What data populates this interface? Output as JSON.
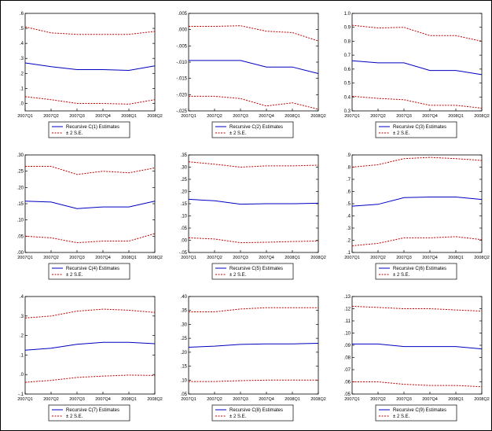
{
  "colors": {
    "estimate": "#0000c0",
    "band": "#c00000",
    "axis": "#000000"
  },
  "legend_se_label": "± 2 S.E.",
  "chart_data": [
    {
      "type": "line",
      "legend": "Recursive C(1) Estimates",
      "categories": [
        "2007Q1",
        "2007Q2",
        "2007Q3",
        "2007Q4",
        "2008Q1",
        "2008Q2"
      ],
      "ylim": [
        -0.05,
        0.6
      ],
      "yticks": [
        {
          "v": 0.6,
          "label": ".6"
        },
        {
          "v": 0.5,
          "label": ".5"
        },
        {
          "v": 0.4,
          "label": ".4"
        },
        {
          "v": 0.3,
          "label": ".3"
        },
        {
          "v": 0.2,
          "label": ".2"
        },
        {
          "v": 0.1,
          "label": ".1"
        },
        {
          "v": 0.0,
          "label": ".0"
        }
      ],
      "estimate": [
        0.27,
        0.245,
        0.225,
        0.225,
        0.22,
        0.25
      ],
      "upper": [
        0.51,
        0.47,
        0.46,
        0.46,
        0.46,
        0.48
      ],
      "lower": [
        0.045,
        0.025,
        0.0,
        0.0,
        -0.005,
        0.025
      ]
    },
    {
      "type": "line",
      "legend": "Recursive C(2) Estimates",
      "categories": [
        "2007Q1",
        "2007Q2",
        "2007Q3",
        "2007Q4",
        "2008Q1",
        "2008Q2"
      ],
      "ylim": [
        -0.025,
        0.005
      ],
      "yticks": [
        {
          "v": 0.005,
          "label": ".005"
        },
        {
          "v": 0.0,
          "label": ".000"
        },
        {
          "v": -0.005,
          "label": "-.005"
        },
        {
          "v": -0.01,
          "label": "-.010"
        },
        {
          "v": -0.015,
          "label": "-.015"
        },
        {
          "v": -0.02,
          "label": "-.020"
        },
        {
          "v": -0.025,
          "label": "-.025"
        }
      ],
      "estimate": [
        -0.0095,
        -0.0095,
        -0.0095,
        -0.0115,
        -0.0115,
        -0.0135
      ],
      "upper": [
        0.001,
        0.001,
        0.0012,
        -0.0005,
        -0.0009,
        -0.0035
      ],
      "lower": [
        -0.0205,
        -0.0205,
        -0.0212,
        -0.0235,
        -0.0225,
        -0.0245
      ]
    },
    {
      "type": "line",
      "legend": "Recursive C(3) Estimates",
      "categories": [
        "2007Q1",
        "2007Q2",
        "2007Q3",
        "2007Q4",
        "2008Q1",
        "2008Q2"
      ],
      "ylim": [
        0.3,
        1.0
      ],
      "yticks": [
        {
          "v": 1.0,
          "label": "1.0"
        },
        {
          "v": 0.9,
          "label": "0.9"
        },
        {
          "v": 0.8,
          "label": "0.8"
        },
        {
          "v": 0.7,
          "label": "0.7"
        },
        {
          "v": 0.6,
          "label": "0.6"
        },
        {
          "v": 0.5,
          "label": "0.5"
        },
        {
          "v": 0.4,
          "label": "0.4"
        },
        {
          "v": 0.3,
          "label": "0.3"
        }
      ],
      "estimate": [
        0.66,
        0.645,
        0.645,
        0.59,
        0.59,
        0.56
      ],
      "upper": [
        0.915,
        0.895,
        0.9,
        0.84,
        0.84,
        0.8
      ],
      "lower": [
        0.405,
        0.39,
        0.38,
        0.34,
        0.34,
        0.32
      ]
    },
    {
      "type": "line",
      "legend": "Recursive C(4) Estimates",
      "categories": [
        "2007Q1",
        "2007Q2",
        "2007Q3",
        "2007Q4",
        "2008Q1",
        "2008Q2"
      ],
      "ylim": [
        0.0,
        0.3
      ],
      "yticks": [
        {
          "v": 0.3,
          "label": ".30"
        },
        {
          "v": 0.25,
          "label": ".25"
        },
        {
          "v": 0.2,
          "label": ".20"
        },
        {
          "v": 0.15,
          "label": ".15"
        },
        {
          "v": 0.1,
          "label": ".10"
        },
        {
          "v": 0.05,
          "label": ".05"
        },
        {
          "v": 0.0,
          "label": ".00"
        }
      ],
      "estimate": [
        0.158,
        0.155,
        0.135,
        0.14,
        0.14,
        0.158
      ],
      "upper": [
        0.265,
        0.265,
        0.24,
        0.25,
        0.245,
        0.26
      ],
      "lower": [
        0.05,
        0.045,
        0.03,
        0.035,
        0.035,
        0.058
      ]
    },
    {
      "type": "line",
      "legend": "Recursive C(5) Estimates",
      "categories": [
        "2007Q1",
        "2007Q2",
        "2007Q3",
        "2007Q4",
        "2008Q1",
        "2008Q2"
      ],
      "ylim": [
        -0.05,
        0.35
      ],
      "yticks": [
        {
          "v": 0.35,
          "label": ".35"
        },
        {
          "v": 0.3,
          "label": ".30"
        },
        {
          "v": 0.25,
          "label": ".25"
        },
        {
          "v": 0.2,
          "label": ".20"
        },
        {
          "v": 0.15,
          "label": ".15"
        },
        {
          "v": 0.1,
          "label": ".10"
        },
        {
          "v": 0.05,
          "label": ".05"
        },
        {
          "v": 0.0,
          "label": ".00"
        },
        {
          "v": -0.05,
          "label": "-.05"
        }
      ],
      "estimate": [
        0.168,
        0.162,
        0.148,
        0.15,
        0.15,
        0.152
      ],
      "upper": [
        0.322,
        0.312,
        0.3,
        0.305,
        0.305,
        0.308
      ],
      "lower": [
        0.01,
        0.005,
        -0.01,
        -0.008,
        -0.005,
        -0.003
      ]
    },
    {
      "type": "line",
      "legend": "Recursive C(6) Estimates",
      "categories": [
        "2007Q1",
        "2007Q2",
        "2007Q3",
        "2007Q4",
        "2008Q1",
        "2008Q2"
      ],
      "ylim": [
        0.1,
        0.9
      ],
      "yticks": [
        {
          "v": 0.9,
          "label": ".9"
        },
        {
          "v": 0.8,
          "label": ".8"
        },
        {
          "v": 0.7,
          "label": ".7"
        },
        {
          "v": 0.6,
          "label": ".6"
        },
        {
          "v": 0.5,
          "label": ".5"
        },
        {
          "v": 0.4,
          "label": ".4"
        },
        {
          "v": 0.3,
          "label": ".3"
        },
        {
          "v": 0.2,
          "label": ".2"
        },
        {
          "v": 0.1,
          "label": ".1"
        }
      ],
      "estimate": [
        0.48,
        0.495,
        0.55,
        0.555,
        0.555,
        0.535
      ],
      "upper": [
        0.8,
        0.82,
        0.87,
        0.88,
        0.87,
        0.855
      ],
      "lower": [
        0.155,
        0.175,
        0.22,
        0.22,
        0.23,
        0.205
      ]
    },
    {
      "type": "line",
      "legend": "Recursive C(7) Estimates",
      "categories": [
        "2007Q1",
        "2007Q2",
        "2007Q3",
        "2007Q4",
        "2008Q1",
        "2008Q2"
      ],
      "ylim": [
        -0.1,
        0.4
      ],
      "yticks": [
        {
          "v": 0.4,
          "label": ".4"
        },
        {
          "v": 0.3,
          "label": ".3"
        },
        {
          "v": 0.2,
          "label": ".2"
        },
        {
          "v": 0.1,
          "label": ".1"
        },
        {
          "v": 0.0,
          "label": ".0"
        },
        {
          "v": -0.1,
          "label": "-.1"
        }
      ],
      "estimate": [
        0.125,
        0.135,
        0.155,
        0.165,
        0.165,
        0.158
      ],
      "upper": [
        0.29,
        0.3,
        0.325,
        0.335,
        0.33,
        0.318
      ],
      "lower": [
        -0.04,
        -0.03,
        -0.015,
        -0.008,
        -0.003,
        -0.005
      ]
    },
    {
      "type": "line",
      "legend": "Recursive C(8) Estimates",
      "categories": [
        "2007Q1",
        "2007Q2",
        "2007Q3",
        "2007Q4",
        "2008Q1",
        "2008Q2"
      ],
      "ylim": [
        0.05,
        0.4
      ],
      "yticks": [
        {
          "v": 0.4,
          "label": ".40"
        },
        {
          "v": 0.35,
          "label": ".35"
        },
        {
          "v": 0.3,
          "label": ".30"
        },
        {
          "v": 0.25,
          "label": ".25"
        },
        {
          "v": 0.2,
          "label": ".20"
        },
        {
          "v": 0.15,
          "label": ".15"
        },
        {
          "v": 0.1,
          "label": ".10"
        },
        {
          "v": 0.05,
          "label": ".05"
        }
      ],
      "estimate": [
        0.218,
        0.222,
        0.228,
        0.23,
        0.23,
        0.232
      ],
      "upper": [
        0.345,
        0.345,
        0.355,
        0.36,
        0.36,
        0.36
      ],
      "lower": [
        0.095,
        0.095,
        0.098,
        0.1,
        0.1,
        0.1
      ]
    },
    {
      "type": "line",
      "legend": "Recursive C(9) Estimates",
      "categories": [
        "2007Q1",
        "2007Q2",
        "2007Q3",
        "2007Q4",
        "2008Q1",
        "2008Q2"
      ],
      "ylim": [
        0.05,
        0.13
      ],
      "yticks": [
        {
          "v": 0.13,
          "label": ".13"
        },
        {
          "v": 0.12,
          "label": ".12"
        },
        {
          "v": 0.11,
          "label": ".11"
        },
        {
          "v": 0.1,
          "label": ".10"
        },
        {
          "v": 0.09,
          "label": ".09"
        },
        {
          "v": 0.08,
          "label": ".08"
        },
        {
          "v": 0.07,
          "label": ".07"
        },
        {
          "v": 0.06,
          "label": ".06"
        },
        {
          "v": 0.05,
          "label": ".05"
        }
      ],
      "estimate": [
        0.091,
        0.091,
        0.089,
        0.089,
        0.089,
        0.087
      ],
      "upper": [
        0.122,
        0.121,
        0.12,
        0.12,
        0.119,
        0.118
      ],
      "lower": [
        0.06,
        0.06,
        0.058,
        0.057,
        0.057,
        0.056
      ]
    }
  ]
}
